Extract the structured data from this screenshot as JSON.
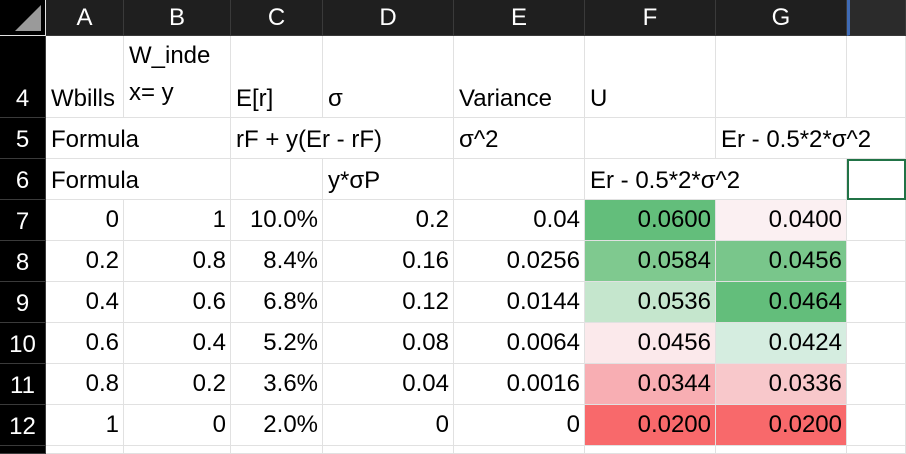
{
  "column_headers": [
    "A",
    "B",
    "C",
    "D",
    "E",
    "F",
    "G"
  ],
  "row_headers": [
    "4",
    "5",
    "6",
    "7",
    "8",
    "9",
    "10",
    "11",
    "12"
  ],
  "row4": {
    "A": "Wbills",
    "B_line1": "W_inde",
    "B_line2": "x= y",
    "C": "E[r]",
    "D": "σ",
    "E": "Variance",
    "F": "U"
  },
  "row5": {
    "A": "Formula",
    "C": "rF + y(Er - rF)",
    "E": "σ^2",
    "G": "Er - 0.5*2*σ^2"
  },
  "row6": {
    "A": "Formula",
    "D": "y*σP",
    "F": "Er - 0.5*2*σ^2"
  },
  "rows": [
    {
      "A": "0",
      "B": "1",
      "C": "10.0%",
      "D": "0.2",
      "E": "0.04",
      "F": "0.0600",
      "G": "0.0400"
    },
    {
      "A": "0.2",
      "B": "0.8",
      "C": "8.4%",
      "D": "0.16",
      "E": "0.0256",
      "F": "0.0584",
      "G": "0.0456"
    },
    {
      "A": "0.4",
      "B": "0.6",
      "C": "6.8%",
      "D": "0.12",
      "E": "0.0144",
      "F": "0.0536",
      "G": "0.0464"
    },
    {
      "A": "0.6",
      "B": "0.4",
      "C": "5.2%",
      "D": "0.08",
      "E": "0.0064",
      "F": "0.0456",
      "G": "0.0424"
    },
    {
      "A": "0.8",
      "B": "0.2",
      "C": "3.6%",
      "D": "0.04",
      "E": "0.0016",
      "F": "0.0344",
      "G": "0.0336"
    },
    {
      "A": "1",
      "B": "0",
      "C": "2.0%",
      "D": "0",
      "E": "0",
      "F": "0.0200",
      "G": "0.0200"
    }
  ],
  "colors": {
    "F": [
      "#63be7b",
      "#7fc98f",
      "#c5e6cd",
      "#fbe9eb",
      "#f8aeb3",
      "#f8696b"
    ],
    "G": [
      "#fbf0f2",
      "#79c68b",
      "#63be7b",
      "#d5ede0",
      "#f8c8cb",
      "#f8696b"
    ],
    "header_bg": "#1f1f1f",
    "selection": "#217346"
  }
}
